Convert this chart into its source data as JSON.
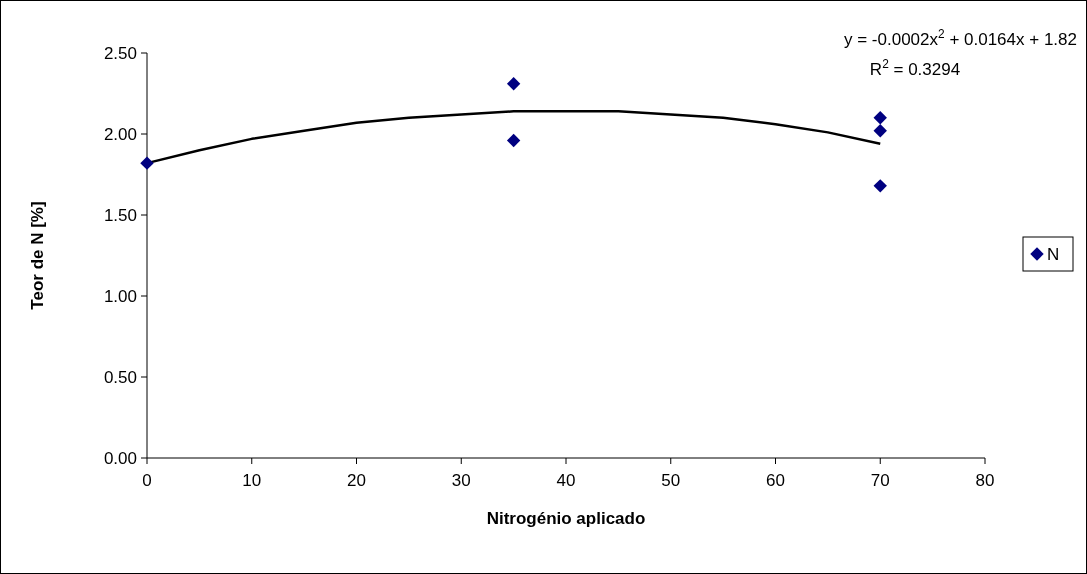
{
  "chart_data": {
    "type": "scatter",
    "xlabel": "Nitrogénio aplicado",
    "ylabel": "Teor de N [%]",
    "xlim": [
      0,
      80
    ],
    "xticks": [
      0,
      10,
      20,
      30,
      40,
      50,
      60,
      70,
      80
    ],
    "ylim": [
      0,
      2.5
    ],
    "yticks": [
      {
        "value": 0,
        "label": "0.00"
      },
      {
        "value": 0.5,
        "label": "0.50"
      },
      {
        "value": 1,
        "label": "1.00"
      },
      {
        "value": 1.5,
        "label": "1.50"
      },
      {
        "value": 2,
        "label": "2.00"
      },
      {
        "value": 2.5,
        "label": "2.50"
      }
    ],
    "grid": false,
    "legend": "right",
    "marker": "diamond",
    "annotations": [
      "y = -0.0002x$^{2}$ + 0.0164x + 1.82",
      "R$^{2}$ = 0.3294"
    ],
    "series": [
      {
        "name": "N",
        "color": "#000080",
        "x": [
          0,
          35,
          35,
          70,
          70,
          70
        ],
        "values": [
          1.82,
          2.31,
          1.96,
          2.1,
          2.02,
          1.68
        ]
      },
      {
        "type": "line",
        "color": "#000000",
        "marker": "none",
        "x": [
          0,
          5,
          10,
          15,
          20,
          25,
          30,
          35,
          40,
          45,
          50,
          55,
          60,
          65,
          70
        ],
        "values": [
          1.82,
          1.9,
          1.97,
          2.02,
          2.07,
          2.1,
          2.12,
          2.14,
          2.14,
          2.14,
          2.12,
          2.1,
          2.06,
          2.01,
          1.94
        ]
      }
    ]
  }
}
